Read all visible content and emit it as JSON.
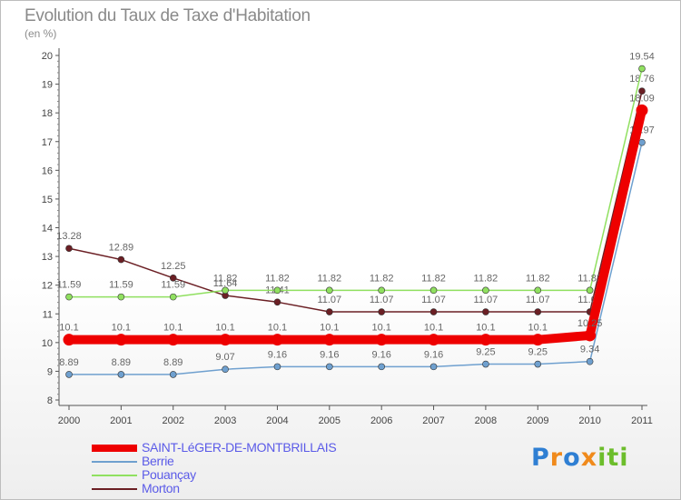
{
  "header": {
    "title": "Evolution du Taux de Taxe d'Habitation",
    "subtitle": "(en %)"
  },
  "chart_data": {
    "type": "line",
    "title": "Evolution du Taux de Taxe d'Habitation",
    "subtitle": "(en %)",
    "xlabel": "",
    "ylabel": "",
    "x": [
      "2000",
      "2001",
      "2002",
      "2003",
      "2004",
      "2005",
      "2006",
      "2007",
      "2008",
      "2009",
      "2010",
      "2011"
    ],
    "ylim": [
      8,
      20
    ],
    "yticks": [
      8,
      9,
      10,
      11,
      12,
      13,
      14,
      15,
      16,
      17,
      18,
      19,
      20
    ],
    "grid": false,
    "legend_position": "bottom-left",
    "series": [
      {
        "name": "Morton",
        "color": "#6b1f24",
        "values": [
          13.28,
          12.89,
          12.25,
          11.64,
          11.41,
          11.07,
          11.07,
          11.07,
          11.07,
          11.07,
          11.07,
          18.76
        ],
        "labels": [
          "13.28",
          "12.89",
          "12.25",
          "11.64",
          "11.41",
          "11.07",
          "11.07",
          "11.07",
          "11.07",
          "11.07",
          "11.07",
          "18.76"
        ]
      },
      {
        "name": "Pouançay",
        "color": "#90e060",
        "values": [
          11.59,
          11.59,
          11.59,
          11.82,
          11.82,
          11.82,
          11.82,
          11.82,
          11.82,
          11.82,
          11.82,
          19.54
        ],
        "labels": [
          "11.59",
          "11.59",
          "11.59",
          "11.82",
          "11.82",
          "11.82",
          "11.82",
          "11.82",
          "11.82",
          "11.82",
          "11.82",
          "19.54"
        ]
      },
      {
        "name": "Berrie",
        "color": "#6fa0cf",
        "values": [
          8.89,
          8.89,
          8.89,
          9.07,
          9.16,
          9.16,
          9.16,
          9.16,
          9.25,
          9.25,
          9.34,
          16.97
        ],
        "labels": [
          "8.89",
          "8.89",
          "8.89",
          "9.07",
          "9.16",
          "9.16",
          "9.16",
          "9.16",
          "9.25",
          "9.25",
          "9.34",
          "16.97"
        ]
      },
      {
        "name": "SAINT-LéGER-DE-MONTBRILLAIS",
        "color": "#ee0000",
        "values": [
          10.1,
          10.1,
          10.1,
          10.1,
          10.1,
          10.1,
          10.1,
          10.1,
          10.1,
          10.1,
          10.25,
          18.09
        ],
        "labels": [
          "10.1",
          "10.1",
          "10.1",
          "10.1",
          "10.1",
          "10.1",
          "10.1",
          "10.1",
          "10.1",
          "10.1",
          "10.25",
          "18.09"
        ]
      }
    ]
  },
  "legend": {
    "items": [
      {
        "label": "SAINT-LéGER-DE-MONTBRILLAIS",
        "color": "#ee0000"
      },
      {
        "label": "Berrie",
        "color": "#6fa0cf"
      },
      {
        "label": "Pouançay",
        "color": "#90e060"
      },
      {
        "label": "Morton",
        "color": "#6b1f24"
      }
    ]
  },
  "logo": {
    "letters": [
      "P",
      "r",
      "o",
      "x",
      "i",
      "t",
      "i"
    ],
    "colors": [
      "#2f7fd3",
      "#f08a1c",
      "#2f7fd3",
      "#f08a1c",
      "#6cbd2b",
      "#6cbd2b",
      "#6cbd2b"
    ]
  }
}
